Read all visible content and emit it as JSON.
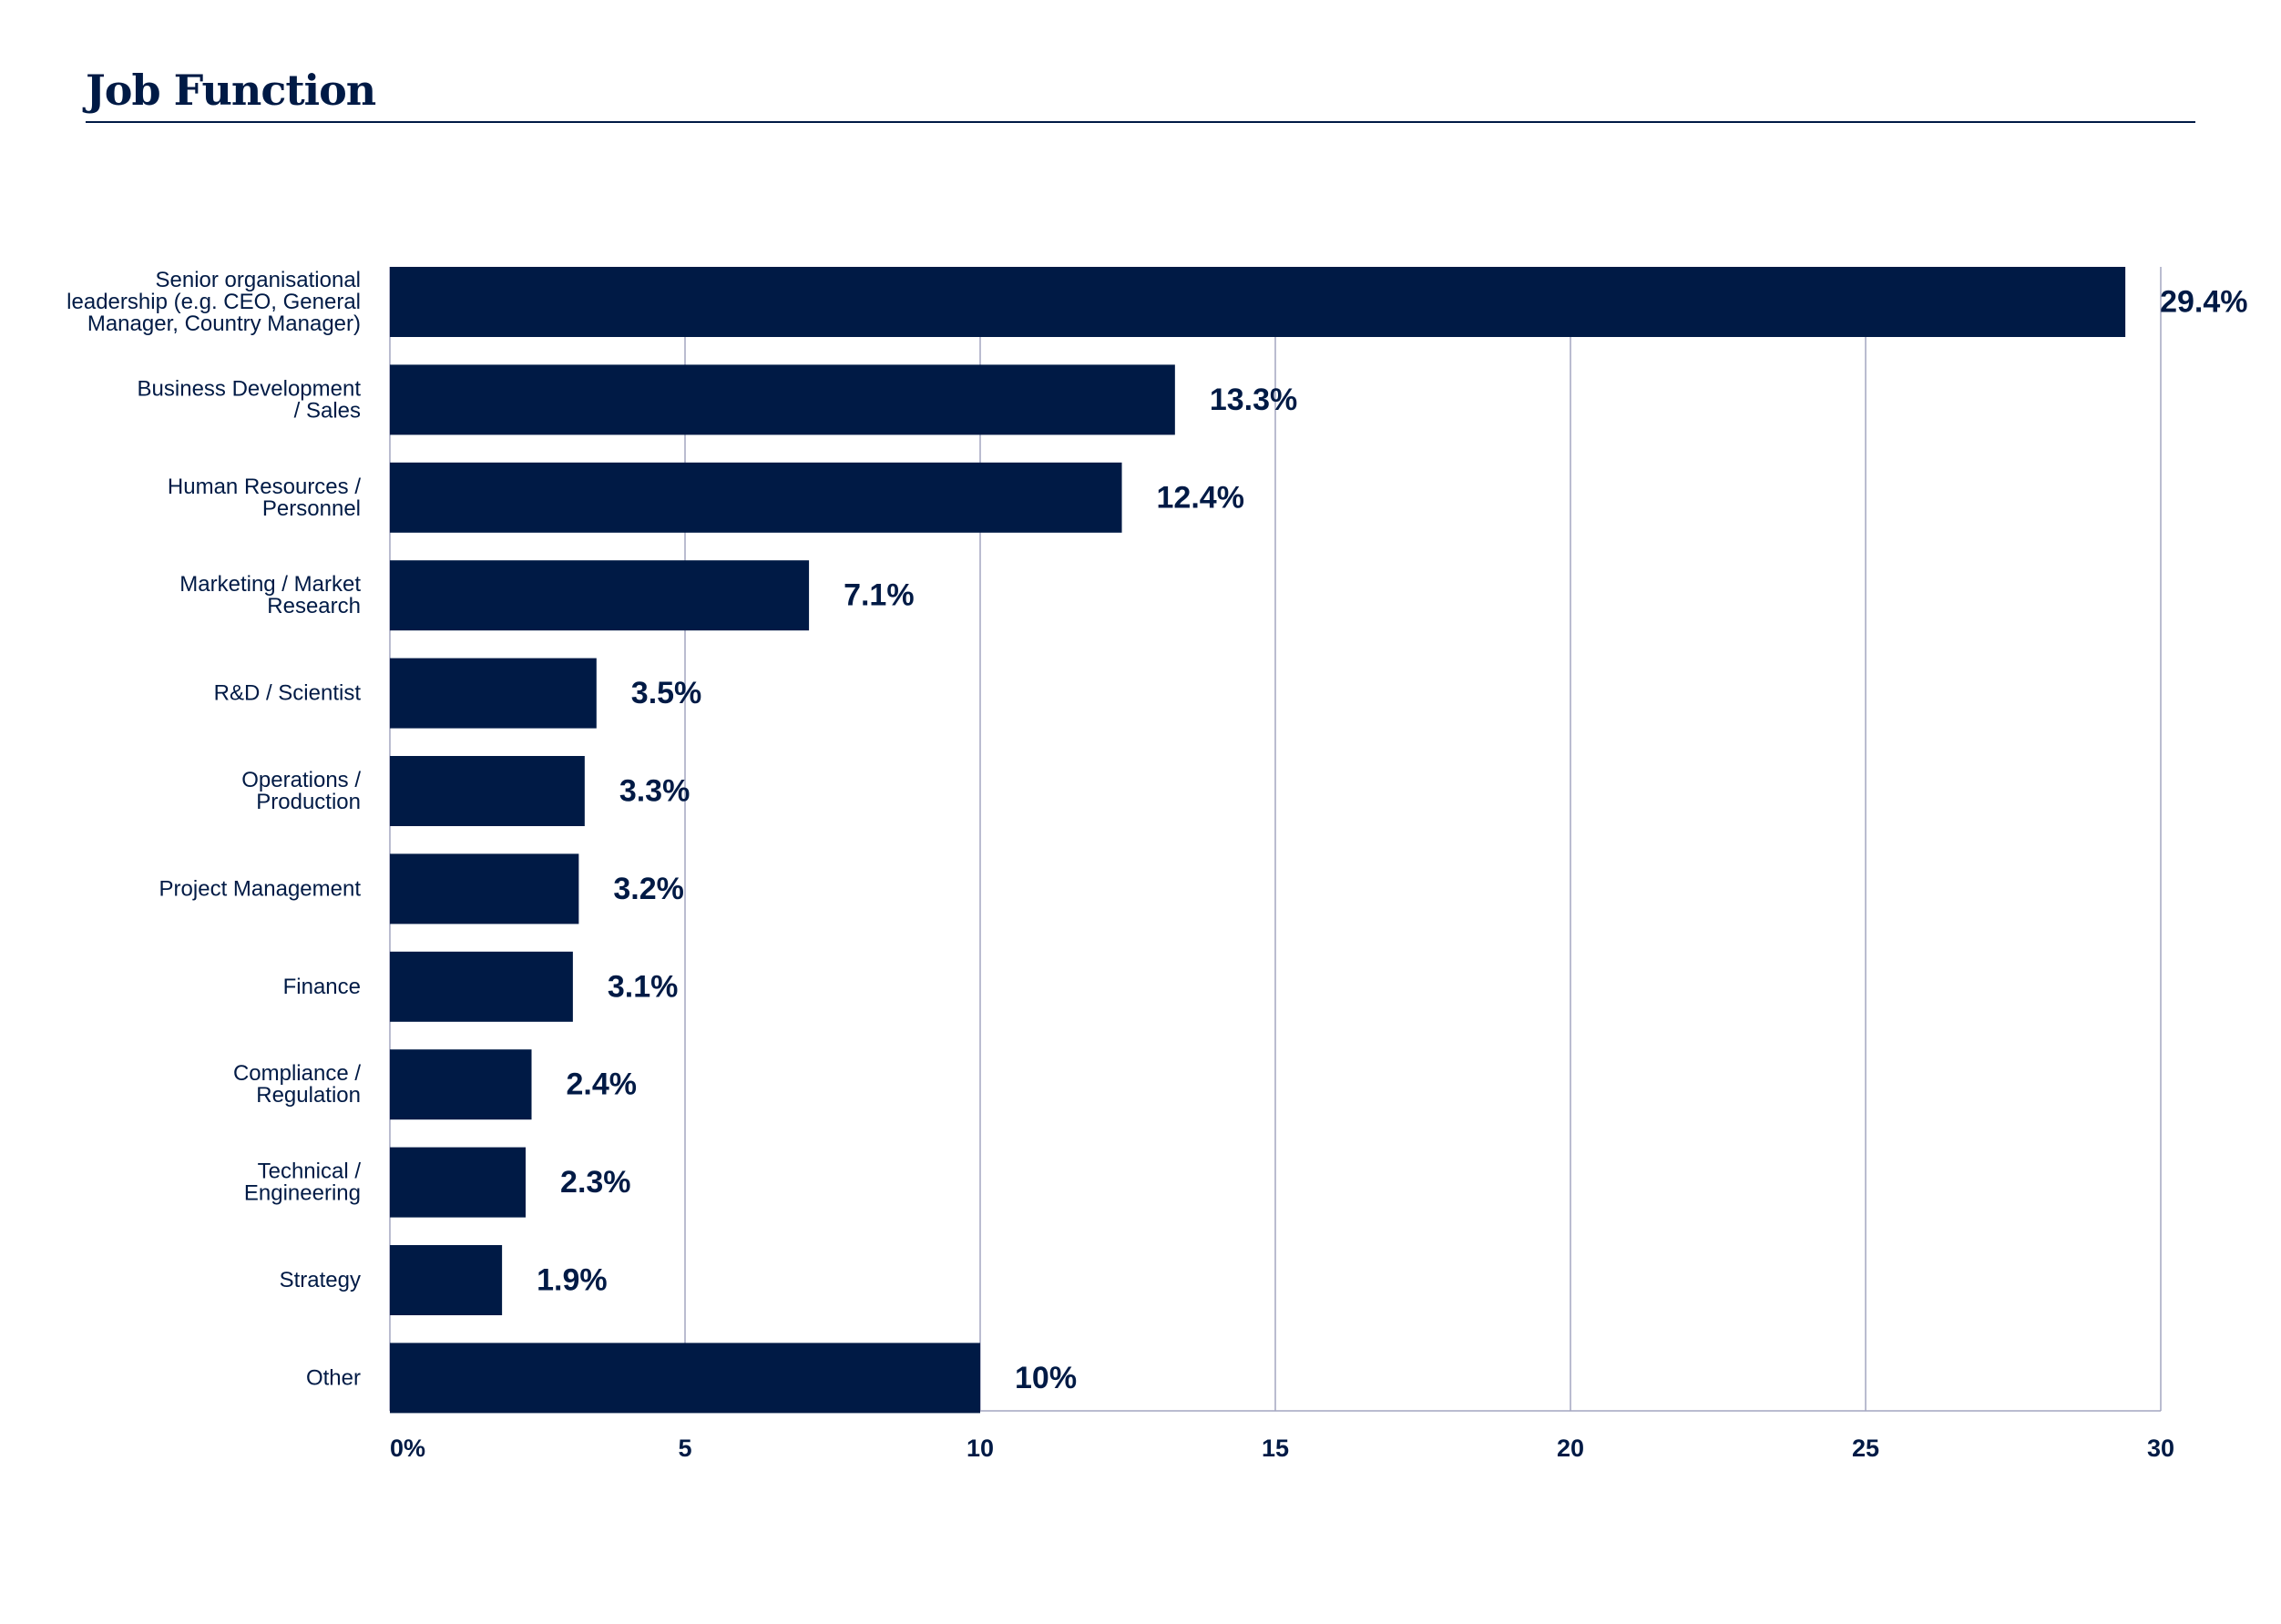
{
  "page": {
    "title": "Job Function"
  },
  "chart_data": {
    "type": "bar",
    "orientation": "horizontal",
    "title": "Job Function",
    "xlabel": "",
    "ylabel": "",
    "xlim": [
      0,
      30
    ],
    "x_ticks": [
      0,
      5,
      10,
      15,
      20,
      25,
      30
    ],
    "x_tick_labels": [
      "0%",
      "5",
      "10",
      "15",
      "20",
      "25",
      "30"
    ],
    "grid": "vertical",
    "categories": [
      [
        "Senior organisational",
        "leadership (e.g. CEO, General",
        "Manager, Country Manager)"
      ],
      [
        "Business Development",
        "/ Sales"
      ],
      [
        "Human Resources /",
        "Personnel"
      ],
      [
        "Marketing / Market",
        "Research"
      ],
      [
        "R&D / Scientist"
      ],
      [
        "Operations /",
        "Production"
      ],
      [
        "Project Management"
      ],
      [
        "Finance"
      ],
      [
        "Compliance /",
        "Regulation"
      ],
      [
        "Technical /",
        "Engineering"
      ],
      [
        "Strategy"
      ],
      [
        "Other"
      ]
    ],
    "values": [
      29.4,
      13.3,
      12.4,
      7.1,
      3.5,
      3.3,
      3.2,
      3.1,
      2.4,
      2.3,
      1.9,
      10
    ],
    "value_labels": [
      "29.4%",
      "13.3%",
      "12.4%",
      "7.1%",
      "3.5%",
      "3.3%",
      "3.2%",
      "3.1%",
      "2.4%",
      "2.3%",
      "1.9%",
      "10%"
    ],
    "colors": {
      "bar": "#001a45",
      "grid": "#a3a6c0",
      "text": "#001a45"
    }
  }
}
